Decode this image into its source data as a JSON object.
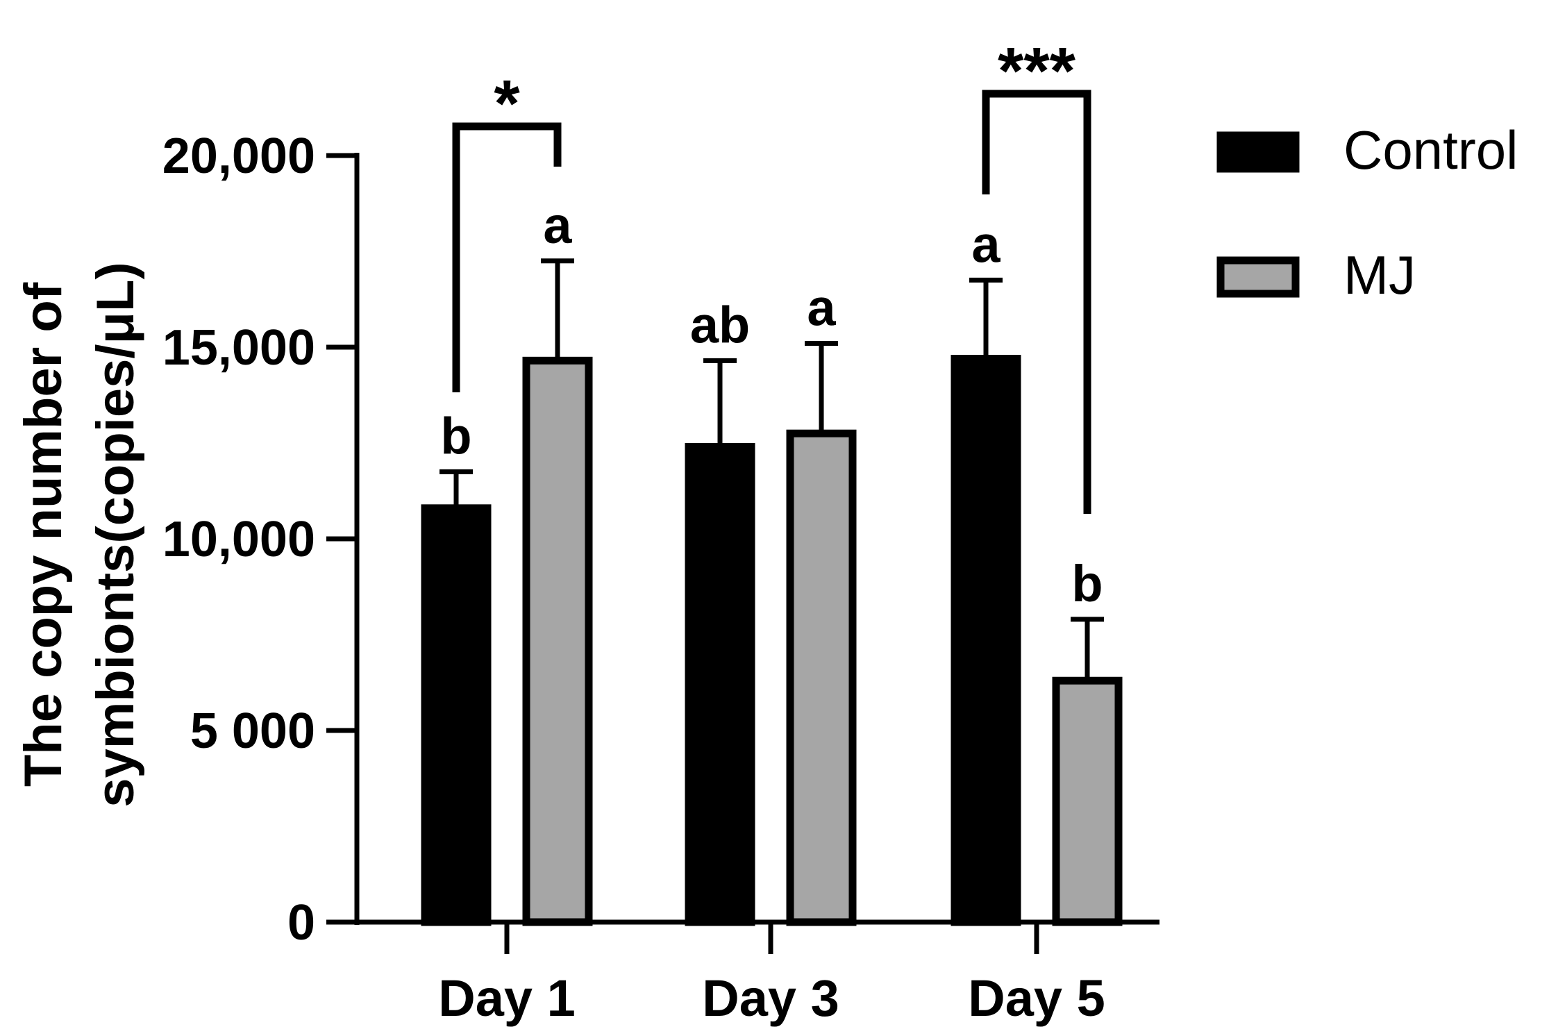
{
  "chart_data": {
    "type": "bar",
    "ylabel_lines": [
      "The copy number of",
      "symbionts(copies/μL)"
    ],
    "ylim": [
      0,
      20000
    ],
    "yticks": [
      0,
      5000,
      10000,
      15000,
      20000
    ],
    "ytick_labels": [
      "0",
      "5 000",
      "10,000",
      "15,000",
      "20,000"
    ],
    "categories": [
      "Day 1",
      "Day 3",
      "Day 5"
    ],
    "series": [
      {
        "name": "Control",
        "color": "#000000",
        "values": [
          10800,
          12400,
          14700
        ],
        "errors": [
          950,
          2250,
          2050
        ],
        "letters": [
          "b",
          "ab",
          "a"
        ]
      },
      {
        "name": "MJ",
        "color": "#a6a6a6",
        "values": [
          14650,
          12750,
          6300
        ],
        "errors": [
          2600,
          2350,
          1600
        ],
        "letters": [
          "a",
          "a",
          "b"
        ]
      }
    ],
    "significance": [
      {
        "category": "Day 1",
        "label": "*"
      },
      {
        "category": "Day 5",
        "label": "***"
      }
    ],
    "legend_position": "top-right"
  }
}
